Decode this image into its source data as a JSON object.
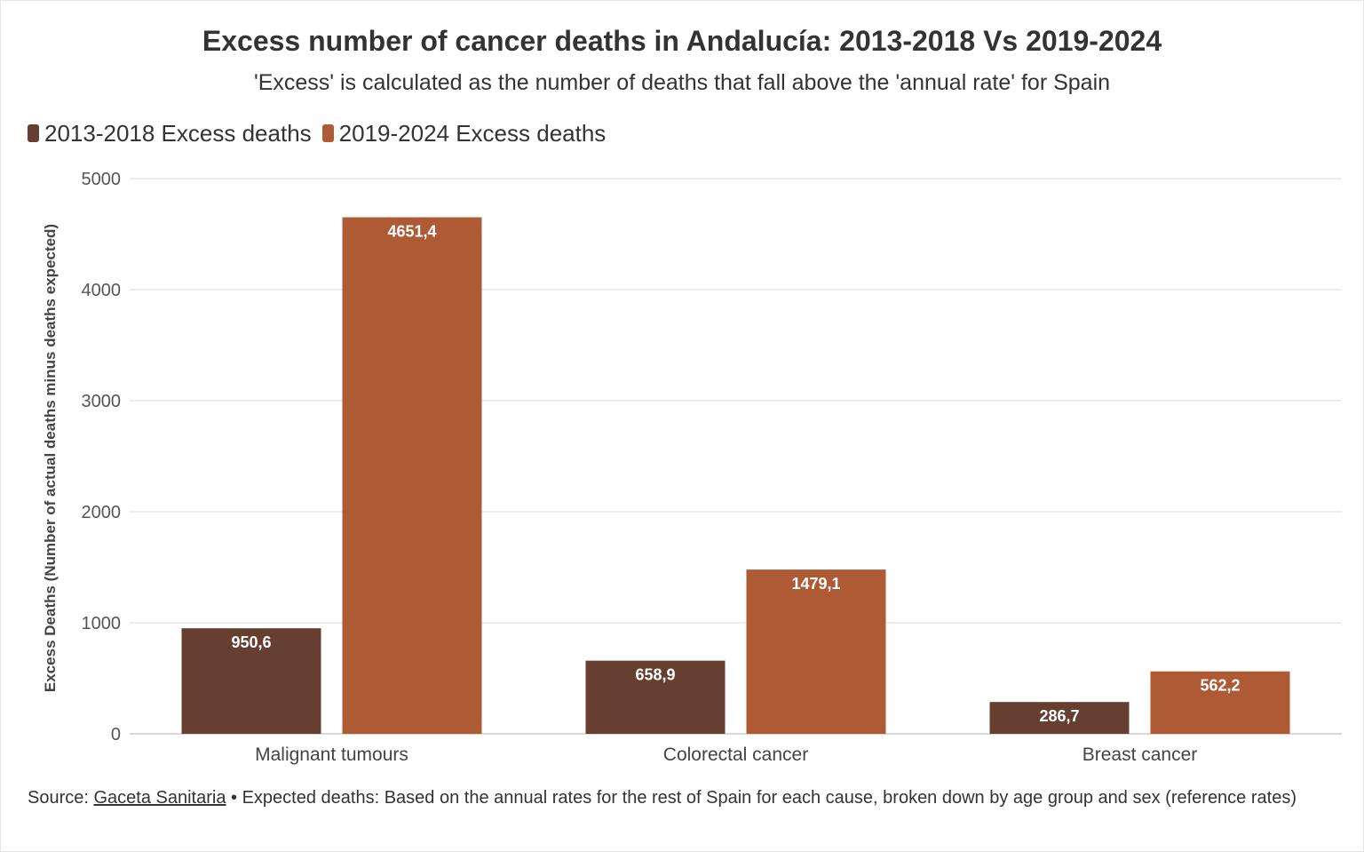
{
  "chart_data": {
    "type": "bar",
    "title": "Excess number of cancer deaths in Andalucía: 2013-2018 Vs 2019-2024",
    "subtitle": "'Excess' is calculated as the number of deaths that fall above the 'annual rate' for Spain",
    "ylabel": "Excess Deaths (Number of actual deaths minus deaths expected)",
    "xlabel": "",
    "categories": [
      "Malignant tumours",
      "Colorectal cancer",
      "Breast cancer"
    ],
    "series": [
      {
        "name": "2013-2018 Excess deaths",
        "color": "#673f30",
        "values": [
          950.6,
          658.9,
          286.7
        ],
        "labels": [
          "950,6",
          "658,9",
          "286,7"
        ]
      },
      {
        "name": "2019-2024 Excess deaths",
        "color": "#ae5a35",
        "values": [
          4651.4,
          1479.1,
          562.2
        ],
        "labels": [
          "4651,4",
          "1479,1",
          "562,2"
        ]
      }
    ],
    "ylim": [
      0,
      5000
    ],
    "yticks": [
      0,
      1000,
      2000,
      3000,
      4000,
      5000
    ],
    "grid": true,
    "legend_position": "top-left"
  },
  "footer": {
    "source_prefix": "Source: ",
    "source_link": "Gaceta Sanitaria",
    "note": " • Expected deaths: Based on the annual rates for the rest of Spain for each cause, broken down by age group and sex (reference rates)"
  }
}
